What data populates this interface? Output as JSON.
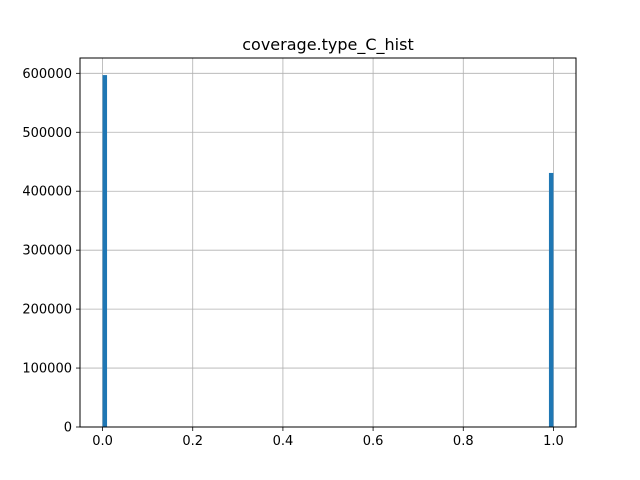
{
  "chart_data": {
    "type": "bar",
    "title": "coverage.type_C_hist",
    "xlabel": "",
    "ylabel": "",
    "xlim": [
      -0.05,
      1.05
    ],
    "ylim": [
      0,
      626000
    ],
    "grid": true,
    "bar_color": "#1f77b4",
    "bins": [
      {
        "x0": 0.0,
        "x1": 0.01,
        "count": 597000
      },
      {
        "x0": 0.99,
        "x1": 1.0,
        "count": 431000
      }
    ],
    "x_ticks": [
      {
        "value": 0.0,
        "label": "0.0"
      },
      {
        "value": 0.2,
        "label": "0.2"
      },
      {
        "value": 0.4,
        "label": "0.4"
      },
      {
        "value": 0.6,
        "label": "0.6"
      },
      {
        "value": 0.8,
        "label": "0.8"
      },
      {
        "value": 1.0,
        "label": "1.0"
      }
    ],
    "y_ticks": [
      {
        "value": 0,
        "label": "0"
      },
      {
        "value": 100000,
        "label": "100000"
      },
      {
        "value": 200000,
        "label": "200000"
      },
      {
        "value": 300000,
        "label": "300000"
      },
      {
        "value": 400000,
        "label": "400000"
      },
      {
        "value": 500000,
        "label": "500000"
      },
      {
        "value": 600000,
        "label": "600000"
      }
    ]
  }
}
